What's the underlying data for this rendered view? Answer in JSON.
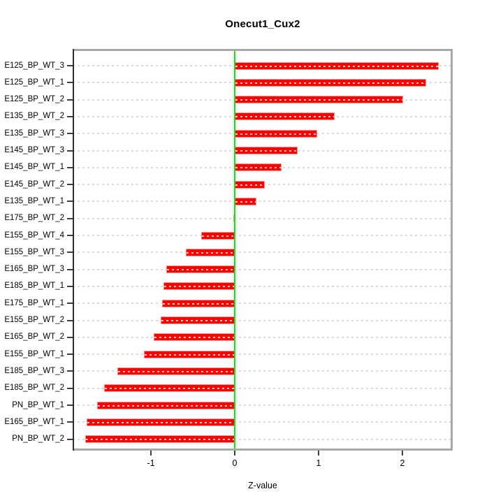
{
  "title": "Onecut1_Cux2",
  "xlabel": "Z-value",
  "chart_data": {
    "type": "bar",
    "orientation": "horizontal",
    "title": "Onecut1_Cux2",
    "xlabel": "Z-value",
    "ylabel": "",
    "categories": [
      "E125_BP_WT_3",
      "E125_BP_WT_1",
      "E125_BP_WT_2",
      "E135_BP_WT_2",
      "E135_BP_WT_3",
      "E145_BP_WT_3",
      "E145_BP_WT_1",
      "E145_BP_WT_2",
      "E135_BP_WT_1",
      "E175_BP_WT_2",
      "E155_BP_WT_4",
      "E155_BP_WT_3",
      "E165_BP_WT_3",
      "E185_BP_WT_1",
      "E175_BP_WT_1",
      "E155_BP_WT_2",
      "E165_BP_WT_2",
      "E155_BP_WT_1",
      "E185_BP_WT_3",
      "E185_BP_WT_2",
      "PN_BP_WT_1",
      "E165_BP_WT_1",
      "PN_BP_WT_2"
    ],
    "values": [
      2.43,
      2.28,
      2.01,
      1.19,
      0.98,
      0.75,
      0.56,
      0.36,
      0.26,
      -0.02,
      -0.4,
      -0.58,
      -0.82,
      -0.85,
      -0.87,
      -0.88,
      -0.97,
      -1.08,
      -1.4,
      -1.56,
      -1.64,
      -1.77,
      -1.78
    ],
    "x_ticks": [
      {
        "label": "-1",
        "value": -1
      },
      {
        "label": "0",
        "value": 0
      },
      {
        "label": "1",
        "value": 1
      },
      {
        "label": "2",
        "value": 2
      }
    ],
    "xlim": [
      -1.93,
      2.6
    ],
    "grid": true,
    "legend": "none",
    "zero_reference_line": 0,
    "colors": {
      "bar_fill": "#ff0000",
      "bar_edge": "#ff9090",
      "zero_line": "#00ee00",
      "grid_line": "#d9d9d9",
      "box_edge": "#a8a8a8",
      "y_axis_line": "#2e2e2e",
      "tick_mark": "#3d3d3d",
      "text": "#000000"
    }
  }
}
